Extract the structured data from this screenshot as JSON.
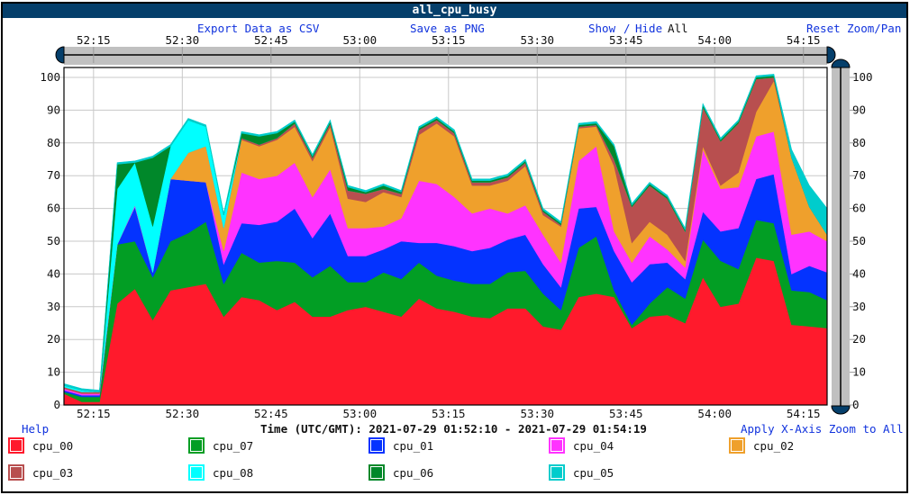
{
  "window": {
    "title": "all_cpu_busy"
  },
  "toolbar": {
    "export_csv": "Export Data as CSV",
    "save_png": "Save as PNG",
    "show": "Show",
    "slash": "/",
    "hide": "Hide",
    "all": "All",
    "reset_zoom": "Reset Zoom/Pan"
  },
  "footer": {
    "help": "Help",
    "time_range": "Time (UTC/GMT): 2021-07-29 01:52:10 - 2021-07-29 01:54:19",
    "apply_zoom": "Apply X-Axis Zoom to All"
  },
  "colors": {
    "titlebar": "#053f6b",
    "link": "#1133dd",
    "slider_track": "#c0c0c0",
    "slider_handle": "#053f6b",
    "grid": "#c8c8c8"
  },
  "legend": [
    {
      "name": "cpu_00",
      "color": "#ff1a2c"
    },
    {
      "name": "cpu_07",
      "color": "#029e24"
    },
    {
      "name": "cpu_01",
      "color": "#0433ff"
    },
    {
      "name": "cpu_04",
      "color": "#ff33ff"
    },
    {
      "name": "cpu_02",
      "color": "#efa02c"
    },
    {
      "name": "cpu_03",
      "color": "#b84f4f"
    },
    {
      "name": "cpu_08",
      "color": "#00ffff"
    },
    {
      "name": "cpu_06",
      "color": "#00882a"
    },
    {
      "name": "cpu_05",
      "color": "#00cccc"
    }
  ],
  "chart_data": {
    "type": "area",
    "stacked": true,
    "title": "all_cpu_busy",
    "xlabel": "Time (UTC/GMT): 2021-07-29 01:52:10 - 2021-07-29 01:54:19",
    "ylabel": "",
    "ylim": [
      0,
      100
    ],
    "yticks": [
      0,
      10,
      20,
      30,
      40,
      50,
      60,
      70,
      80,
      90,
      100
    ],
    "xticks": [
      "52:15",
      "52:30",
      "52:45",
      "53:00",
      "53:15",
      "53:30",
      "53:45",
      "54:00",
      "54:15"
    ],
    "grid": true,
    "legend_position": "bottom",
    "x": [
      "52:10",
      "52:13",
      "52:16",
      "52:19",
      "52:22",
      "52:25",
      "52:28",
      "52:31",
      "52:34",
      "52:37",
      "52:40",
      "52:43",
      "52:46",
      "52:49",
      "52:52",
      "52:55",
      "52:58",
      "53:01",
      "53:04",
      "53:07",
      "53:10",
      "53:13",
      "53:16",
      "53:19",
      "53:22",
      "53:25",
      "53:28",
      "53:31",
      "53:34",
      "53:37",
      "53:40",
      "53:43",
      "53:46",
      "53:49",
      "53:52",
      "53:55",
      "53:58",
      "54:01",
      "54:04",
      "54:07",
      "54:10",
      "54:13",
      "54:16",
      "54:19"
    ],
    "series": [
      {
        "name": "cpu_00",
        "values": [
          3.5,
          1,
          1,
          31,
          35.5,
          26,
          35,
          36,
          37,
          27,
          33,
          32,
          29,
          31.5,
          27,
          27,
          29,
          30,
          28.5,
          27,
          32.5,
          29.5,
          28.5,
          27,
          26.5,
          29.5,
          29.5,
          24,
          23,
          33,
          34,
          33,
          23.5,
          27,
          27.5,
          25,
          39,
          30,
          31,
          45,
          44,
          24.5,
          24,
          23.5
        ]
      },
      {
        "name": "cpu_07",
        "values": [
          0.5,
          1.5,
          1.5,
          18,
          14.5,
          13,
          15,
          16.5,
          19,
          10,
          13.5,
          11.5,
          15,
          12,
          12,
          15.5,
          8.5,
          7.5,
          12,
          11.5,
          11,
          10,
          9.5,
          10,
          10.5,
          11,
          11.5,
          10,
          6,
          15,
          17.5,
          2,
          1,
          4,
          8.5,
          7.5,
          11.5,
          14,
          10.5,
          11.5,
          11.5,
          10.5,
          10.5,
          8.5
        ]
      },
      {
        "name": "cpu_01",
        "values": [
          0.5,
          0.5,
          0.5,
          0,
          10.5,
          1.5,
          19,
          16,
          12,
          6,
          9,
          11.5,
          12,
          16.5,
          12,
          16,
          8,
          8,
          7,
          11.5,
          6,
          10,
          10.5,
          10,
          11,
          10,
          11,
          9,
          7,
          12,
          9,
          12,
          13,
          12,
          7.5,
          6,
          8.5,
          9,
          12.5,
          12.5,
          15,
          5,
          8,
          8.5
        ]
      },
      {
        "name": "cpu_04",
        "values": [
          0.5,
          0.5,
          0.5,
          0,
          0.5,
          0,
          0,
          0,
          0,
          4,
          15.5,
          14,
          14,
          14,
          12.5,
          13.5,
          8.5,
          8.5,
          7,
          7,
          19,
          18,
          15,
          11.5,
          12,
          8,
          9,
          9,
          7.5,
          14.5,
          18.5,
          6,
          6,
          8.5,
          4,
          3.5,
          19,
          13,
          12.5,
          13,
          13,
          12,
          10.5,
          9.5
        ]
      },
      {
        "name": "cpu_02",
        "values": [
          0,
          0,
          0,
          0,
          0,
          0,
          0,
          8.5,
          11,
          7,
          10,
          10,
          11,
          11,
          11,
          13,
          9,
          8,
          10.5,
          6.5,
          14,
          18.5,
          18.5,
          8.5,
          7,
          10,
          12,
          6,
          11,
          10,
          6,
          20,
          6,
          4.5,
          4.5,
          2,
          1,
          1,
          4.5,
          7.5,
          15.5,
          23.5,
          7.5,
          2
        ]
      },
      {
        "name": "cpu_03",
        "values": [
          0.5,
          0.5,
          0.5,
          0,
          0,
          0,
          0,
          0,
          0,
          0,
          0.5,
          0.5,
          0.5,
          1,
          1,
          1,
          2.5,
          2.5,
          1,
          1,
          1.5,
          1,
          1,
          1,
          1,
          1,
          1,
          1,
          0.5,
          0.5,
          0.5,
          2,
          11,
          11,
          11,
          9,
          12,
          13.5,
          15,
          10,
          1,
          0,
          0,
          0
        ]
      },
      {
        "name": "cpu_08",
        "values": [
          0.5,
          0.5,
          0,
          17,
          13,
          14,
          10,
          10,
          6,
          4,
          0,
          0,
          0,
          0,
          0,
          0,
          0,
          0,
          0,
          0,
          0,
          0,
          0,
          0,
          0,
          0,
          0,
          0,
          0,
          0,
          0,
          0,
          0,
          0,
          0,
          0,
          0,
          0,
          0,
          0,
          0,
          0,
          0,
          0
        ]
      },
      {
        "name": "cpu_06",
        "values": [
          0,
          0,
          0,
          7.5,
          0,
          21,
          0,
          0,
          0,
          0,
          1.5,
          2.5,
          1.5,
          0.5,
          0.5,
          0.5,
          1,
          0.5,
          1,
          0.5,
          0.5,
          0.5,
          0.5,
          0.5,
          0.5,
          0.5,
          0.5,
          0.5,
          0.5,
          0.5,
          0.5,
          4,
          0.5,
          0.5,
          0.5,
          0.5,
          0.5,
          0.5,
          0.5,
          0.5,
          0.5,
          0,
          0,
          0
        ]
      },
      {
        "name": "cpu_05",
        "values": [
          0.5,
          0.5,
          0.5,
          0.5,
          0.5,
          0.5,
          0.5,
          0.5,
          0.5,
          0.5,
          0.5,
          0.5,
          0.5,
          0.5,
          0.5,
          0.5,
          0.5,
          0.5,
          0.5,
          0.5,
          0.5,
          0.5,
          0.5,
          0.5,
          0.5,
          0.5,
          0.5,
          0.5,
          0.5,
          0.5,
          0.5,
          0.5,
          0.5,
          0.5,
          0.5,
          0.5,
          0.5,
          0.5,
          0.5,
          0.5,
          0.5,
          2.5,
          6.5,
          8
        ]
      }
    ]
  }
}
